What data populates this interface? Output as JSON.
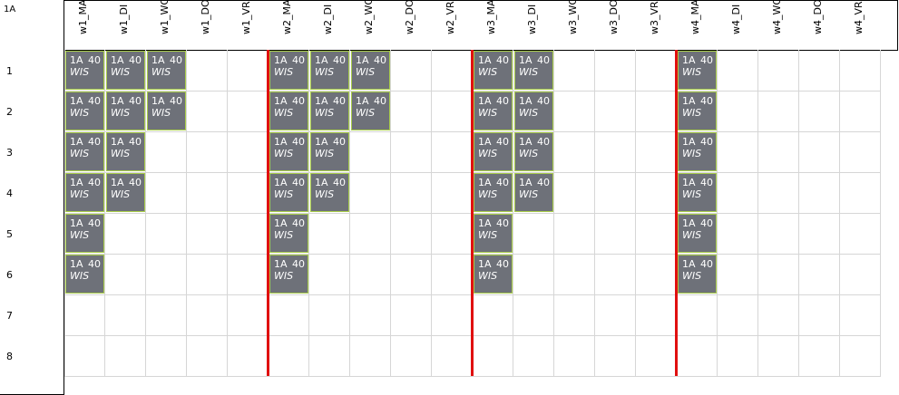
{
  "corner_label": "1A",
  "columns": [
    "w1_MA",
    "w1_DI",
    "w1_WO",
    "w1_DO",
    "w1_VR",
    "w2_MA",
    "w2_DI",
    "w2_WO",
    "w2_DO",
    "w2_VR",
    "w3_MA",
    "w3_DI",
    "w3_WO",
    "w3_DO",
    "w3_VR",
    "w4_MA",
    "w4_DI",
    "w4_WO",
    "w4_DO",
    "w4_VR"
  ],
  "rows": [
    "1",
    "2",
    "3",
    "4",
    "5",
    "6",
    "7",
    "8"
  ],
  "lesson": {
    "class": "1A",
    "number": "40",
    "subject": "WIS"
  },
  "colors": {
    "lesson_bg": "#6e7179",
    "lesson_border": "#a8cc4a",
    "week_separator": "#e01010"
  },
  "lessons": [
    [
      0,
      0
    ],
    [
      1,
      0
    ],
    [
      2,
      0
    ],
    [
      5,
      0
    ],
    [
      6,
      0
    ],
    [
      7,
      0
    ],
    [
      10,
      0
    ],
    [
      11,
      0
    ],
    [
      15,
      0
    ],
    [
      0,
      1
    ],
    [
      1,
      1
    ],
    [
      2,
      1
    ],
    [
      5,
      1
    ],
    [
      6,
      1
    ],
    [
      7,
      1
    ],
    [
      10,
      1
    ],
    [
      11,
      1
    ],
    [
      15,
      1
    ],
    [
      0,
      2
    ],
    [
      1,
      2
    ],
    [
      5,
      2
    ],
    [
      6,
      2
    ],
    [
      10,
      2
    ],
    [
      11,
      2
    ],
    [
      15,
      2
    ],
    [
      0,
      3
    ],
    [
      1,
      3
    ],
    [
      5,
      3
    ],
    [
      6,
      3
    ],
    [
      10,
      3
    ],
    [
      11,
      3
    ],
    [
      15,
      3
    ],
    [
      0,
      4
    ],
    [
      5,
      4
    ],
    [
      10,
      4
    ],
    [
      15,
      4
    ],
    [
      0,
      5
    ],
    [
      5,
      5
    ],
    [
      10,
      5
    ],
    [
      15,
      5
    ]
  ]
}
